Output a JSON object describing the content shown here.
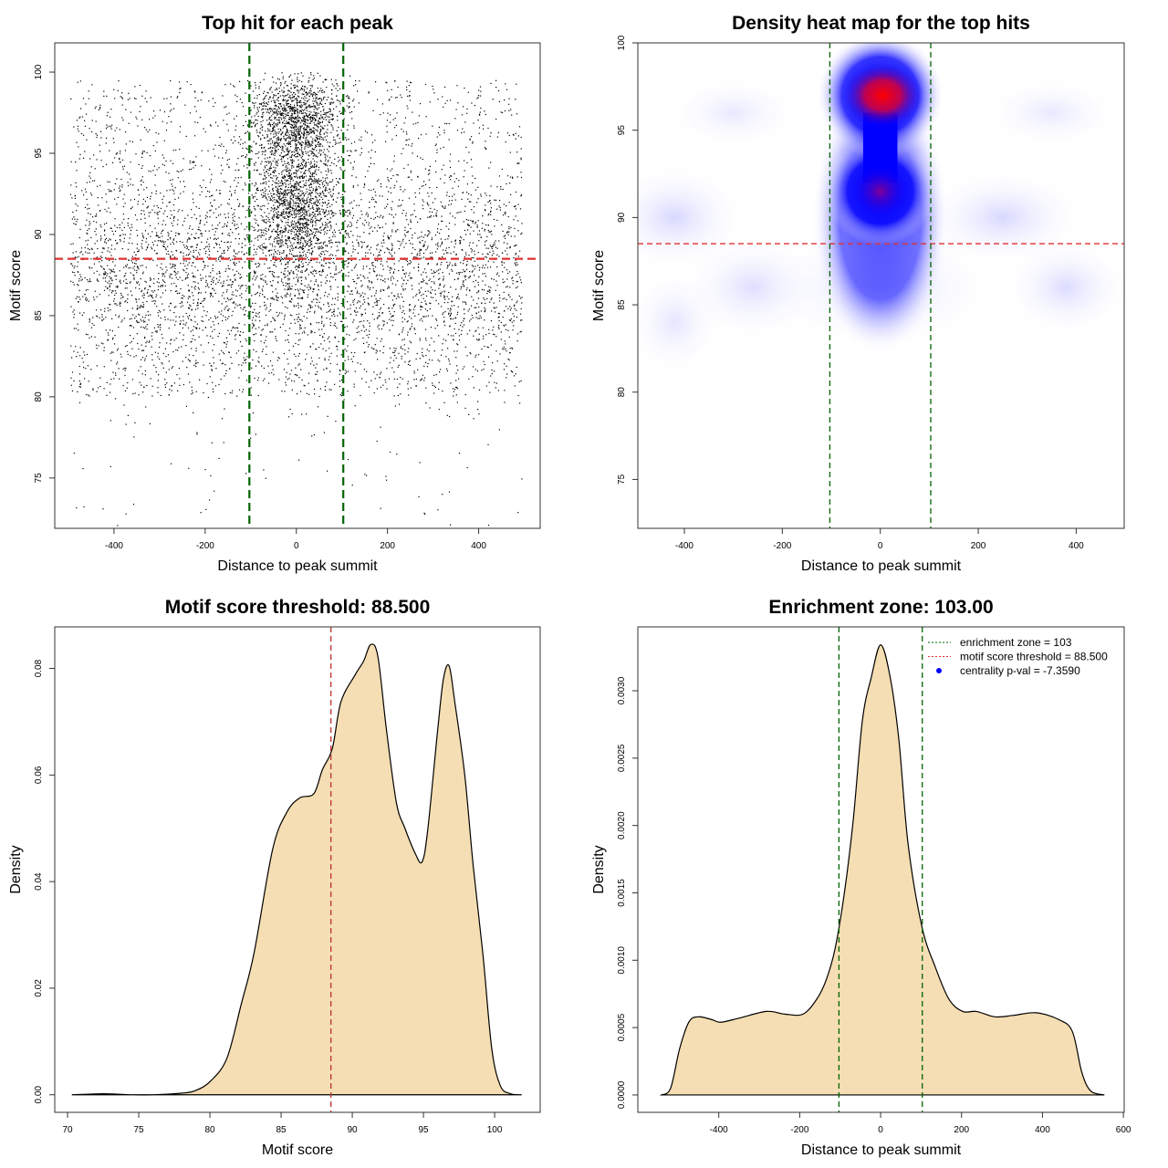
{
  "chart_data": [
    {
      "type": "scatter",
      "title": "Top hit for each peak",
      "xlabel": "Distance to peak summit",
      "ylabel": "Motif score",
      "xlim": [
        -530,
        535
      ],
      "ylim": [
        71.9,
        101.8
      ],
      "xticks": [
        -400,
        -200,
        0,
        200,
        400
      ],
      "yticks": [
        75,
        80,
        85,
        90,
        95,
        100
      ],
      "grid": false,
      "hlines": [
        {
          "y": 88.5,
          "color": "#e03030",
          "style": "dashed"
        }
      ],
      "vlines": [
        {
          "x": -103,
          "color": "#006400",
          "style": "dashed"
        },
        {
          "x": 103,
          "color": "#006400",
          "style": "dashed"
        }
      ],
      "point_color": "#000000"
    },
    {
      "type": "heatmap",
      "title": "Density heat map for the top hits",
      "xlabel": "Distance to peak summit",
      "ylabel": "Motif score",
      "xlim": [
        -495,
        498
      ],
      "ylim": [
        72.2,
        100
      ],
      "xticks": [
        -400,
        -200,
        0,
        200,
        400
      ],
      "yticks": [
        75,
        80,
        85,
        90,
        95,
        100
      ],
      "grid": false,
      "hlines": [
        {
          "y": 88.5,
          "color": "#e03030",
          "style": "dashed"
        }
      ],
      "vlines": [
        {
          "x": -103,
          "color": "#006400",
          "style": "dashed"
        },
        {
          "x": 103,
          "color": "#006400",
          "style": "dashed"
        }
      ],
      "colors": {
        "low": "#ffffff",
        "mid": "#0000ff",
        "high": "#ff0000"
      },
      "hotspots": [
        {
          "x": 5,
          "y": 97,
          "level": "high"
        },
        {
          "x": 0,
          "y": 91.5,
          "level": "medium-high"
        }
      ]
    },
    {
      "type": "area",
      "title": "Motif score threshold: 88.500",
      "xlabel": "Motif score",
      "ylabel": "Density",
      "xlim": [
        69.1,
        103.2
      ],
      "ylim": [
        -0.0033,
        0.0878
      ],
      "xticks": [
        70,
        75,
        80,
        85,
        90,
        95,
        100
      ],
      "yticks": [
        0.0,
        0.02,
        0.04,
        0.06,
        0.08
      ],
      "ytick_labels": [
        "0.00",
        "0.02",
        "0.04",
        "0.06",
        "0.08"
      ],
      "grid": false,
      "fill": "#f5deb3",
      "vlines": [
        {
          "x": 88.5,
          "color": "#c03030",
          "style": "dashed"
        }
      ],
      "x": [
        70.3,
        71.5,
        72.5,
        73.5,
        74.5,
        76,
        78,
        79,
        80.06,
        81.2,
        82.2,
        83.1,
        84.4,
        85.4,
        86.3,
        87.3,
        87.9,
        88.6,
        89.2,
        90.2,
        90.8,
        91.3,
        91.8,
        92.4,
        93.1,
        93.7,
        94.4,
        94.9,
        95.3,
        96.0,
        96.4,
        96.8,
        97.2,
        97.9,
        98.5,
        99.2,
        99.8,
        100.4,
        101.1,
        101.9
      ],
      "y": [
        0,
        0.0001,
        0.0002,
        0.0001,
        0,
        0,
        0.0003,
        0.0008,
        0.0026,
        0.0069,
        0.017,
        0.0266,
        0.046,
        0.053,
        0.0557,
        0.0565,
        0.061,
        0.065,
        0.0737,
        0.0788,
        0.0814,
        0.0845,
        0.0822,
        0.0685,
        0.0548,
        0.05,
        0.0454,
        0.0437,
        0.0497,
        0.0685,
        0.078,
        0.0805,
        0.0737,
        0.06,
        0.0428,
        0.0257,
        0.0086,
        0.0017,
        0.0002,
        0
      ]
    },
    {
      "type": "area",
      "title": "Enrichment zone: 103.00",
      "xlabel": "Distance to peak summit",
      "ylabel": "Density",
      "xlim": [
        -600,
        602
      ],
      "ylim": [
        -0.000129,
        0.003474
      ],
      "xticks": [
        -400,
        -200,
        0,
        200,
        400,
        600
      ],
      "yticks": [
        0,
        0.0005,
        0.001,
        0.0015,
        0.002,
        0.0025,
        0.003
      ],
      "ytick_labels": [
        "0.0000",
        "0.0005",
        "0.0010",
        "0.0015",
        "0.0020",
        "0.0025",
        "0.0030"
      ],
      "grid": false,
      "fill": "#f5deb3",
      "vlines": [
        {
          "x": -103,
          "color": "#006400",
          "style": "dashed"
        },
        {
          "x": 103,
          "color": "#006400",
          "style": "dashed"
        }
      ],
      "x": [
        -542,
        -519,
        -497,
        -474,
        -451,
        -418,
        -395,
        -350,
        -282,
        -237,
        -192,
        -158,
        -135,
        -113,
        -90,
        -68,
        -45,
        -23,
        0,
        23,
        45,
        68,
        102,
        135,
        169,
        203,
        237,
        282,
        327,
        384,
        440,
        474,
        497,
        519,
        553
      ],
      "y": [
        0,
        5e-05,
        0.00034,
        0.00054,
        0.00058,
        0.00056,
        0.00054,
        0.00057,
        0.00062,
        0.0006,
        0.0006,
        0.00071,
        0.00085,
        0.00108,
        0.00149,
        0.00203,
        0.00278,
        0.0031,
        0.00334,
        0.00311,
        0.00264,
        0.00186,
        0.00125,
        0.00095,
        0.00071,
        0.00062,
        0.00062,
        0.00058,
        0.00059,
        0.00061,
        0.00056,
        0.00047,
        0.00017,
        3e-05,
        0
      ],
      "legend": {
        "placement": "top-right",
        "entries": [
          {
            "label": "enrichment zone = 103",
            "color": "#006400",
            "symbol": "dotted-line"
          },
          {
            "label": "motif score threshold = 88.500",
            "color": "#e03030",
            "symbol": "dotted-line"
          },
          {
            "label": "centrality p-val = -7.3590",
            "color": "#0000ff",
            "symbol": "point"
          }
        ]
      }
    }
  ]
}
